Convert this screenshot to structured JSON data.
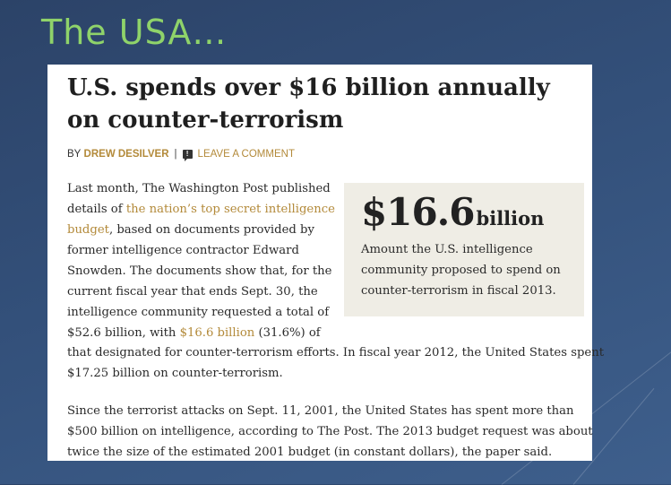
{
  "slide": {
    "title": "The USA…"
  },
  "article": {
    "headline_line1": "U.S. spends over $16 billion annually",
    "headline_line2": "on counter-terrorism",
    "byline": {
      "prefix": "BY",
      "author": "DREW DESILVER",
      "separator": "|",
      "comment_link": "LEAVE A COMMENT"
    },
    "para1": [
      {
        "before": "Last month, The Washington Post published",
        "link": "",
        "after": ""
      },
      {
        "before": "details of ",
        "link": "the nation’s top secret intelligence",
        "after": ""
      },
      {
        "before": "",
        "link": "budget",
        "after": ", based on documents provided by"
      },
      {
        "before": "former intelligence contractor Edward",
        "link": "",
        "after": ""
      },
      {
        "before": "Snowden. The documents show that, for the",
        "link": "",
        "after": ""
      },
      {
        "before": "current fiscal year that ends Sept. 30, the",
        "link": "",
        "after": ""
      },
      {
        "before": "intelligence community requested a total of",
        "link": "",
        "after": ""
      },
      {
        "before": "$52.6 billion, with ",
        "link": "$16.6 billion",
        "after": " (31.6%) of"
      },
      {
        "before": "that designated for counter-terrorism efforts. In fiscal year 2012, the United States spent",
        "link": "",
        "after": ""
      },
      {
        "before": "$17.25 billion on counter-terrorism.",
        "link": "",
        "after": ""
      }
    ],
    "para2": [
      "Since the terrorist attacks on Sept. 11, 2001, the United States has spent more than",
      "$500 billion on intelligence, according to The Post. The 2013 budget request was about",
      "twice the size of the estimated 2001 budget (in constant dollars), the paper said."
    ],
    "callout": {
      "number": "$16.6",
      "unit": "billion",
      "text": "Amount the U.S. intelligence community proposed to spend on counter-terrorism in fiscal 2013."
    }
  }
}
